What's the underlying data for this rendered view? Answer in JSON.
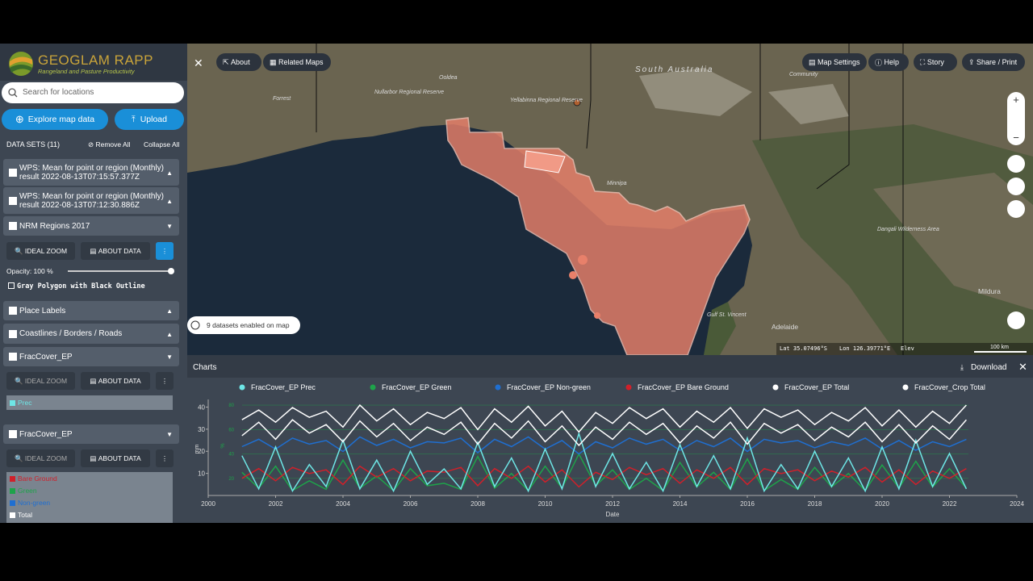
{
  "header": {
    "logo_title": "GEOGLAM RAPP",
    "logo_subtitle": "Rangeland and Pasture Productivity"
  },
  "sidebar": {
    "search_placeholder": "Search for locations",
    "explore_button": "Explore map data",
    "upload_button": "Upload",
    "datasets_label": "DATA SETS (11)",
    "remove_all": "Remove All",
    "collapse_all": "Collapse All",
    "datasets": [
      {
        "name_lines": [
          "WPS: Mean for point or region (Monthly)",
          "result 2022-08-13T07:15:57.377Z"
        ]
      },
      {
        "name_lines": [
          "WPS: Mean for point or region (Monthly)",
          "result 2022-08-13T07:12:30.886Z"
        ]
      },
      {
        "name": "NRM Regions 2017",
        "ideal_zoom": "IDEAL ZOOM",
        "about_data": "ABOUT DATA",
        "opacity_label": "Opacity: 100 %",
        "style_option": "Gray Polygon with Black Outline"
      },
      {
        "name": "Place Labels"
      },
      {
        "name": "Coastlines / Borders / Roads"
      },
      {
        "name": "FracCover_EP",
        "ideal_zoom": "IDEAL ZOOM",
        "about_data": "ABOUT DATA",
        "legend": [
          "Prec"
        ]
      },
      {
        "name": "FracCover_EP",
        "ideal_zoom": "IDEAL ZOOM",
        "about_data": "ABOUT DATA",
        "legend": [
          "Bare Ground",
          "Green",
          "Non-green",
          "Total"
        ]
      }
    ]
  },
  "map": {
    "toolbar": {
      "about": "About",
      "related_maps": "Related Maps",
      "map_settings": "Map Settings",
      "help": "Help",
      "story": "Story",
      "share": "Share / Print"
    },
    "labels": {
      "state": "South Australia",
      "forrest": "Forrest",
      "ooldea": "Ooldea",
      "nullarbor": "Nullarbor Regional Reserve",
      "yellabinna": "Yellabinna Regional Reserve",
      "adelaide": "Adelaide",
      "gulf": "Gulf St. Vincent",
      "mildura": "Mildura",
      "dangali": "Dangali Wilderness Area",
      "community": "Community",
      "minnipa": "Minnipa"
    },
    "status": "9 datasets enabled on map",
    "lat": "Lat 35.07496°S",
    "lon": "Lon 126.39771°E",
    "elev": "Elev",
    "scale": "100 km"
  },
  "charts_panel": {
    "title": "Charts",
    "download": "Download"
  },
  "chart_data": {
    "type": "line",
    "x_label": "Date",
    "y_label": "mm",
    "y2_label": "%",
    "xlim": [
      2000,
      2024
    ],
    "xticks": [
      2000,
      2002,
      2004,
      2006,
      2008,
      2010,
      2012,
      2014,
      2016,
      2018,
      2020,
      2022,
      2024
    ],
    "ylim": [
      0,
      42
    ],
    "yticks": [
      10,
      20,
      30,
      40
    ],
    "y2lim": [
      6,
      82
    ],
    "y2ticks": [
      20,
      40,
      60,
      80
    ],
    "grid": true,
    "x": [
      2001,
      2001.5,
      2002,
      2002.5,
      2003,
      2003.5,
      2004,
      2004.5,
      2005,
      2005.5,
      2006,
      2006.5,
      2007,
      2007.5,
      2008,
      2008.5,
      2009,
      2009.5,
      2010,
      2010.5,
      2011,
      2011.5,
      2012,
      2012.5,
      2013,
      2013.5,
      2014,
      2014.5,
      2015,
      2015.5,
      2016,
      2016.5,
      2017,
      2017.5,
      2018,
      2018.5,
      2019,
      2019.5,
      2020,
      2020.5,
      2021,
      2021.5,
      2022,
      2022.5
    ],
    "series": [
      {
        "name": "FracCover_EP Prec",
        "color": "#6ee6e6",
        "values": [
          18,
          3,
          22,
          2,
          14,
          4,
          25,
          3,
          16,
          2,
          20,
          5,
          12,
          3,
          24,
          4,
          17,
          2,
          21,
          3,
          28,
          4,
          19,
          3,
          15,
          2,
          23,
          4,
          18,
          3,
          26,
          2,
          14,
          3,
          20,
          4,
          17,
          2,
          22,
          3,
          25,
          4,
          19,
          3
        ]
      },
      {
        "name": "FracCover_EP Green",
        "color": "#1ea34a",
        "axis": "y2",
        "values": [
          25,
          12,
          30,
          10,
          18,
          11,
          35,
          12,
          22,
          10,
          28,
          14,
          16,
          11,
          38,
          12,
          24,
          10,
          30,
          12,
          40,
          14,
          27,
          11,
          20,
          10,
          33,
          13,
          25,
          11,
          36,
          10,
          19,
          11,
          29,
          13,
          24,
          10,
          31,
          12,
          34,
          13,
          28,
          12
        ]
      },
      {
        "name": "FracCover_EP Non-green",
        "color": "#1f6fd1",
        "axis": "y2",
        "values": [
          46,
          52,
          44,
          53,
          48,
          51,
          42,
          54,
          47,
          52,
          45,
          50,
          49,
          53,
          41,
          52,
          46,
          54,
          44,
          51,
          40,
          50,
          45,
          53,
          48,
          52,
          43,
          51,
          46,
          53,
          42,
          52,
          49,
          51,
          45,
          50,
          47,
          53,
          44,
          51,
          43,
          50,
          46,
          52
        ]
      },
      {
        "name": "FracCover_EP Bare Ground",
        "color": "#d0202a",
        "axis": "y2",
        "values": [
          20,
          28,
          18,
          29,
          24,
          27,
          15,
          30,
          21,
          28,
          18,
          26,
          25,
          29,
          14,
          28,
          20,
          30,
          17,
          27,
          13,
          25,
          19,
          29,
          23,
          28,
          16,
          27,
          20,
          29,
          15,
          28,
          24,
          27,
          18,
          26,
          21,
          29,
          17,
          27,
          15,
          26,
          20,
          28
        ]
      },
      {
        "name": "FracCover_EP Total",
        "color": "#ffffff",
        "axis": "y2",
        "values": [
          68,
          76,
          66,
          78,
          70,
          75,
          62,
          80,
          67,
          77,
          64,
          74,
          69,
          78,
          60,
          77,
          66,
          79,
          63,
          75,
          58,
          74,
          65,
          78,
          69,
          77,
          62,
          75,
          66,
          78,
          61,
          77,
          70,
          76,
          64,
          74,
          67,
          78,
          63,
          76,
          62,
          75,
          65,
          80
        ]
      },
      {
        "name": "FracCover_Crop Total",
        "color": "#ffffff",
        "axis": "y2",
        "values": [
          55,
          66,
          52,
          68,
          57,
          64,
          50,
          67,
          54,
          65,
          51,
          62,
          56,
          66,
          48,
          65,
          53,
          67,
          50,
          63,
          47,
          62,
          52,
          66,
          56,
          65,
          49,
          63,
          53,
          66,
          48,
          65,
          57,
          64,
          51,
          62,
          54,
          66,
          50,
          64,
          49,
          63,
          52,
          68
        ]
      }
    ]
  }
}
